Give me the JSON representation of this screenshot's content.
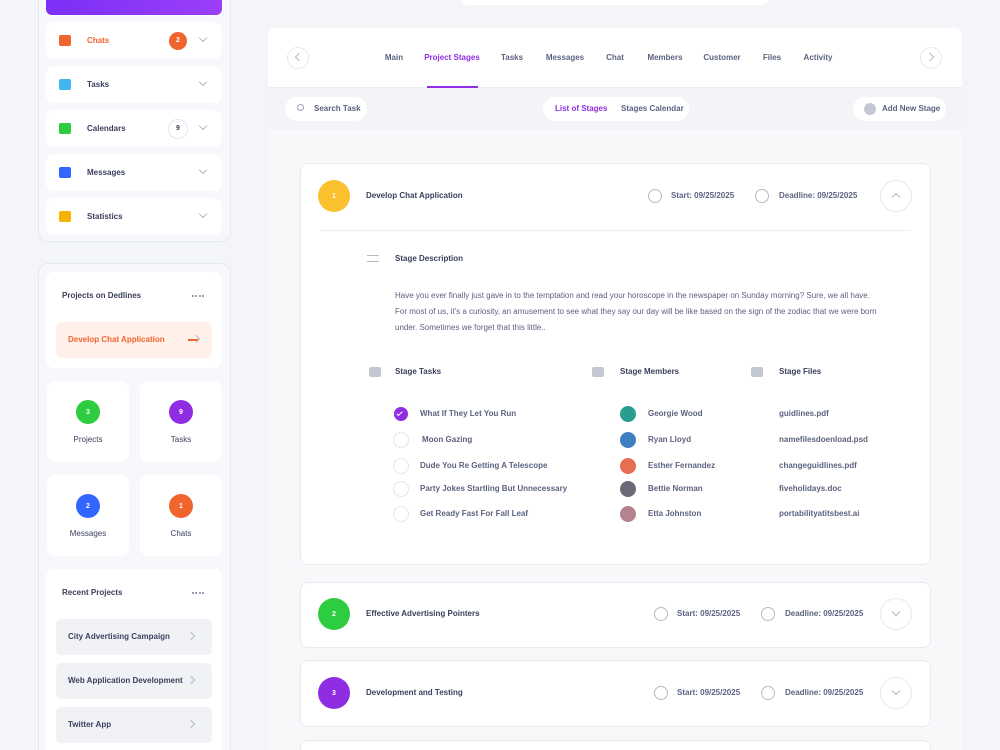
{
  "sidebar": {
    "menu": [
      {
        "label": "Chats",
        "badge": 2
      },
      {
        "label": "Tasks"
      },
      {
        "label": "Calendars",
        "badge": 9
      },
      {
        "label": "Messages"
      },
      {
        "label": "Statistics"
      }
    ],
    "deadlines": {
      "title": "Projects on Dedlines",
      "item": "Develop Chat Application"
    },
    "stats": [
      {
        "value": 3,
        "label": "Projects"
      },
      {
        "value": 9,
        "label": "Tasks"
      },
      {
        "value": 2,
        "label": "Messages"
      },
      {
        "value": 1,
        "label": "Chats"
      }
    ],
    "recent": {
      "title": "Recent Projects",
      "items": [
        "City Advertising Campaign",
        "Web Application Development",
        "Twitter App"
      ]
    }
  },
  "tabs": [
    "Main",
    "Project Stages",
    "Tasks",
    "Messages",
    "Chat",
    "Members",
    "Customer",
    "Files",
    "Activity"
  ],
  "toolbar": {
    "search": "Search Task",
    "views": [
      "List of Stages",
      "Stages Calendar"
    ],
    "add": "Add New Stage"
  },
  "stages": [
    {
      "number": 1,
      "title": "Develop Chat Application",
      "start": "Start: 09/25/2025",
      "deadline": "Deadline: 09/25/2025"
    },
    {
      "number": 2,
      "title": "Effective Advertising Pointers",
      "start": "Start: 09/25/2025",
      "deadline": "Deadline: 09/25/2025"
    },
    {
      "number": 3,
      "title": "Development and Testing",
      "start": "Start: 09/25/2025",
      "deadline": "Deadline: 09/25/2025"
    }
  ],
  "detail": {
    "description_title": "Stage Description",
    "description": "Have you ever finally just gave in to the temptation and read your horoscope in the newspaper on Sunday morning? Sure, we all have. For most of us, it's a curiosity, an amusement to see what they say our day will be like based on the sign of the zodiac that we were born under. Sometimes we forget that this little..",
    "tasks_title": "Stage Tasks",
    "members_title": "Stage Members",
    "files_title": "Stage Files",
    "tasks": [
      "What If They Let You Run",
      "Moon Gazing",
      "Dude You Re Getting A Telescope",
      "Party Jokes Startling But Unnecessary",
      "Get Ready Fast For Fall Leaf"
    ],
    "members": [
      "Georgie Wood",
      "Ryan Lloyd",
      "Esther Fernandez",
      "Bettie Norman",
      "Etta Johnston"
    ],
    "files": [
      "guidlines.pdf",
      "namefilesdoenload.psd",
      "changeguidlines.pdf",
      "fiveholidays.doc",
      "portabilityatitsbest.ai"
    ]
  }
}
